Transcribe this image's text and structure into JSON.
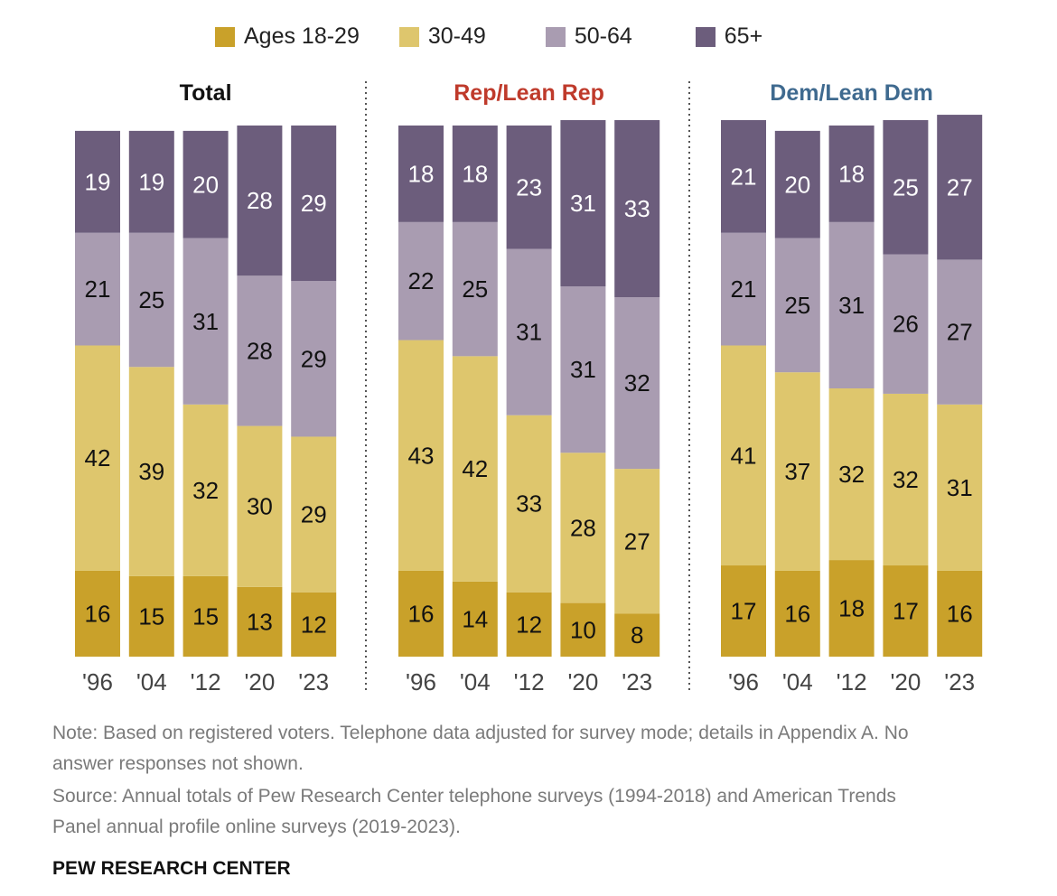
{
  "colors": {
    "18-29": "#C9A12A",
    "30-49": "#DEC66D",
    "50-64": "#A99CB1",
    "65+": "#6C5D7C",
    "rep_title": "#BF3A2B",
    "dem_title": "#3F6A8F",
    "total_title": "#111111"
  },
  "legend": [
    "Ages 18-29",
    "30-49",
    "50-64",
    "65+"
  ],
  "chart_data": [
    {
      "type": "bar",
      "stacked": true,
      "title": "Total",
      "categories": [
        "'96",
        "'04",
        "'12",
        "'20",
        "'23"
      ],
      "series": [
        {
          "name": "Ages 18-29",
          "values": [
            16,
            15,
            15,
            13,
            12
          ]
        },
        {
          "name": "30-49",
          "values": [
            42,
            39,
            32,
            30,
            29
          ]
        },
        {
          "name": "50-64",
          "values": [
            21,
            25,
            31,
            28,
            29
          ]
        },
        {
          "name": "65+",
          "values": [
            19,
            19,
            20,
            28,
            29
          ]
        }
      ]
    },
    {
      "type": "bar",
      "stacked": true,
      "title": "Rep/Lean Rep",
      "categories": [
        "'96",
        "'04",
        "'12",
        "'20",
        "'23"
      ],
      "series": [
        {
          "name": "Ages 18-29",
          "values": [
            16,
            14,
            12,
            10,
            8
          ]
        },
        {
          "name": "30-49",
          "values": [
            43,
            42,
            33,
            28,
            27
          ]
        },
        {
          "name": "50-64",
          "values": [
            22,
            25,
            31,
            31,
            32
          ]
        },
        {
          "name": "65+",
          "values": [
            18,
            18,
            23,
            31,
            33
          ]
        }
      ]
    },
    {
      "type": "bar",
      "stacked": true,
      "title": "Dem/Lean Dem",
      "categories": [
        "'96",
        "'04",
        "'12",
        "'20",
        "'23"
      ],
      "series": [
        {
          "name": "Ages 18-29",
          "values": [
            17,
            16,
            18,
            17,
            16
          ]
        },
        {
          "name": "30-49",
          "values": [
            41,
            37,
            32,
            32,
            31
          ]
        },
        {
          "name": "50-64",
          "values": [
            21,
            25,
            31,
            26,
            27
          ]
        },
        {
          "name": "65+",
          "values": [
            21,
            20,
            18,
            25,
            27
          ]
        }
      ]
    }
  ],
  "note": "Note: Based on registered voters. Telephone data adjusted for survey mode; details in Appendix A. No answer responses not shown.",
  "source": "Source: Annual totals of Pew Research Center telephone surveys (1994-2018) and American Trends Panel annual profile online surveys (2019-2023).",
  "brand": "PEW RESEARCH CENTER"
}
